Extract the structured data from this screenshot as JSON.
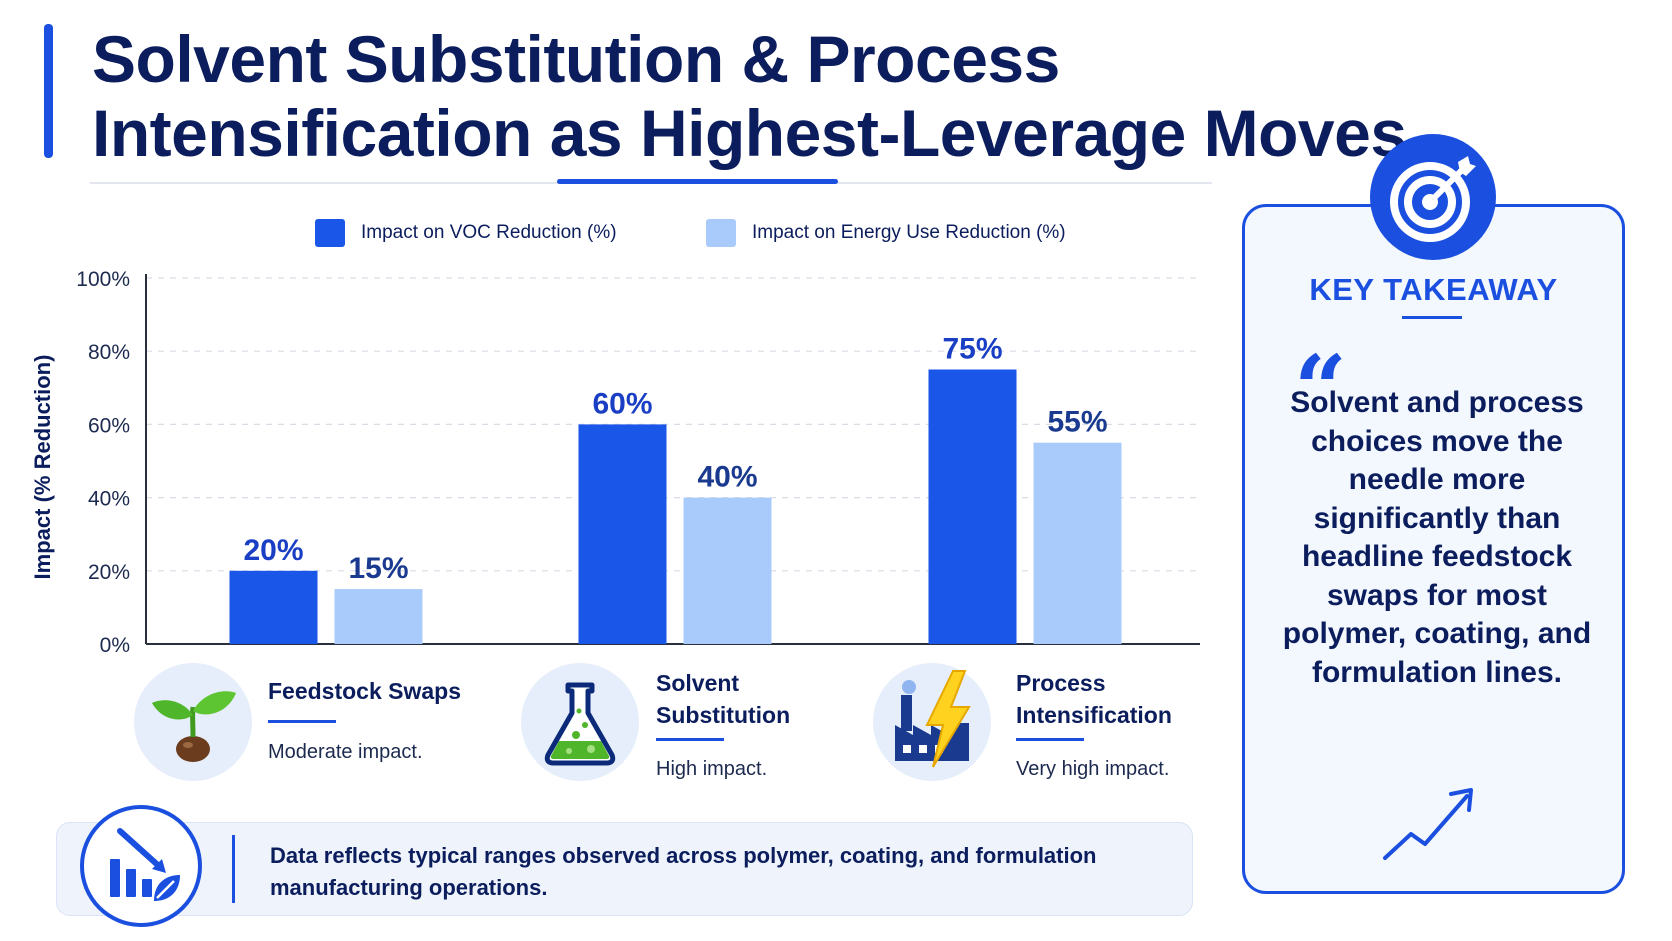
{
  "title": "Solvent Substitution & Process Intensification as Highest-Leverage Moves",
  "chart_data": {
    "type": "bar",
    "categories": [
      "Feedstock Swaps",
      "Solvent Substitution",
      "Process Intensification"
    ],
    "series": [
      {
        "name": "Impact on VOC Reduction (%)",
        "values": [
          20,
          60,
          75
        ],
        "labels": [
          "20%",
          "60%",
          "75%"
        ],
        "color": "#1a56e8"
      },
      {
        "name": "Impact on Energy Use Reduction (%)",
        "values": [
          15,
          40,
          55
        ],
        "labels": [
          "15%",
          "40%",
          "55%"
        ],
        "color": "#a9cbfb"
      }
    ],
    "ylabel": "Impact (% Reduction)",
    "ylim": [
      0,
      100
    ],
    "yticks": [
      0,
      20,
      40,
      60,
      80,
      100
    ],
    "ytick_labels": [
      "0%",
      "20%",
      "40%",
      "60%",
      "80%",
      "100%"
    ],
    "grid": true,
    "legend_position": "top"
  },
  "categories_info": [
    {
      "title": "Feedstock Swaps",
      "desc": "Moderate impact.",
      "icon": "sprout-icon"
    },
    {
      "title": "Solvent\nSubstitution",
      "desc": "High impact.",
      "icon": "flask-icon"
    },
    {
      "title": "Process\nIntensification",
      "desc": "Very high impact.",
      "icon": "factory-lightning-icon"
    }
  ],
  "note": {
    "text": "Data reflects typical ranges observed across polymer, coating, and formulation manufacturing operations.",
    "icon": "chart-decline-leaf-icon"
  },
  "takeaway": {
    "heading": "KEY TAKEAWAY",
    "quote_mark": "“",
    "text": "Solvent and process choices move the needle more significantly than headline feedstock swaps for most polymer, coating, and formulation lines.",
    "top_icon": "target-icon",
    "bottom_icon": "trend-up-icon"
  },
  "colors": {
    "accent": "#1a4fe0",
    "navy": "#0b1d5c",
    "light_blue": "#a9cbfb"
  }
}
